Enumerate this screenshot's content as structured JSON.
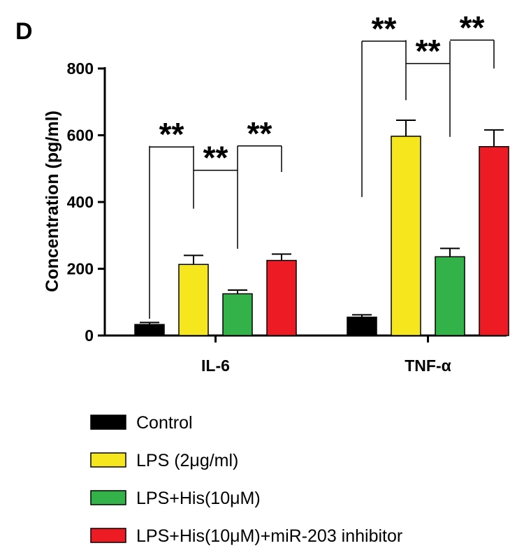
{
  "panel_label": "D",
  "chart_data": {
    "type": "bar",
    "title": "",
    "xlabel": "",
    "ylabel": "Concentration (pg/ml)",
    "ylim": [
      0,
      800
    ],
    "yticks": [
      0,
      200,
      400,
      600,
      800
    ],
    "categories": [
      "IL-6",
      "TNF-α"
    ],
    "series": [
      {
        "name": "Control",
        "color": "#000000",
        "values": [
          33,
          55
        ],
        "errors": [
          6,
          7
        ]
      },
      {
        "name": "LPS (2μg/ml)",
        "color": "#f5e61e",
        "values": [
          213,
          597
        ],
        "errors": [
          27,
          48
        ]
      },
      {
        "name": "LPS+His(10μM)",
        "color": "#33b24a",
        "values": [
          125,
          236
        ],
        "errors": [
          11,
          25
        ]
      },
      {
        "name": "LPS+His(10μM)+miR-203 inhibitor",
        "color": "#ed1c24",
        "values": [
          225,
          566
        ],
        "errors": [
          19,
          50
        ]
      }
    ],
    "significance": [
      {
        "category": 0,
        "from": 0,
        "to": 1,
        "label": "**",
        "line_y": 565
      },
      {
        "category": 0,
        "from": 1,
        "to": 2,
        "label": "**",
        "line_y": 495
      },
      {
        "category": 0,
        "from": 2,
        "to": 3,
        "label": "**",
        "line_y": 568
      },
      {
        "category": 1,
        "from": 0,
        "to": 1,
        "label": "**",
        "line_y": 882
      },
      {
        "category": 1,
        "from": 1,
        "to": 2,
        "label": "**",
        "line_y": 815
      },
      {
        "category": 1,
        "from": 2,
        "to": 3,
        "label": "**",
        "line_y": 885
      }
    ],
    "legend_position": "bottom-left"
  }
}
